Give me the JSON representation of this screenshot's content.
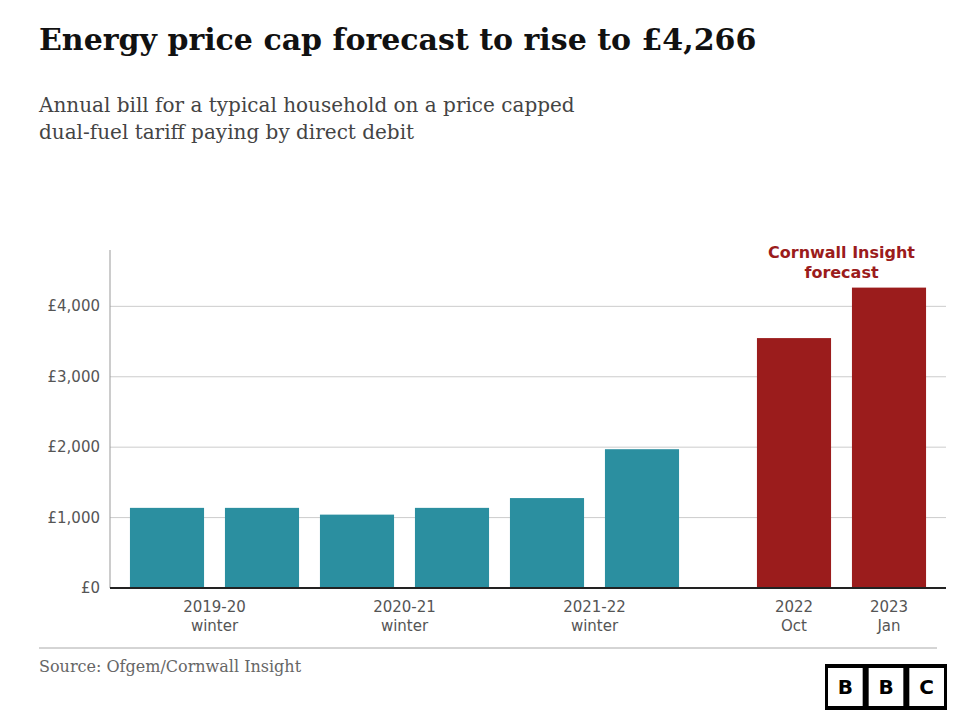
{
  "chart_data": {
    "type": "bar",
    "title": "Energy price cap forecast to rise to £4,266",
    "subtitle": "Annual bill for a typical household on a price capped\ndual-fuel tariff paying by direct debit",
    "categories": [
      "2019-20\nwinter",
      null,
      "2020-21\nwinter",
      null,
      "2021-22\nwinter",
      null,
      "2022\nOct",
      "2023\nJan"
    ],
    "values": [
      1138,
      1138,
      1042,
      1138,
      1277,
      1971,
      3549,
      4266
    ],
    "colors": [
      "#2b8fa0",
      "#2b8fa0",
      "#2b8fa0",
      "#2b8fa0",
      "#2b8fa0",
      "#2b8fa0",
      "#9b1c1c",
      "#9b1c1c"
    ],
    "ylim": [
      0,
      4800
    ],
    "yticks": [
      {
        "value": 0,
        "label": "£0"
      },
      {
        "value": 1000,
        "label": "£1,000"
      },
      {
        "value": 2000,
        "label": "£2,000"
      },
      {
        "value": 3000,
        "label": "£3,000"
      },
      {
        "value": 4000,
        "label": "£4,000"
      }
    ],
    "grid": true,
    "annotations": [
      {
        "text": "Cornwall Insight\nforecast",
        "color": "#9b1c1c"
      }
    ],
    "source": "Source: Ofgem/Cornwall Insight",
    "logo": "BBC"
  }
}
